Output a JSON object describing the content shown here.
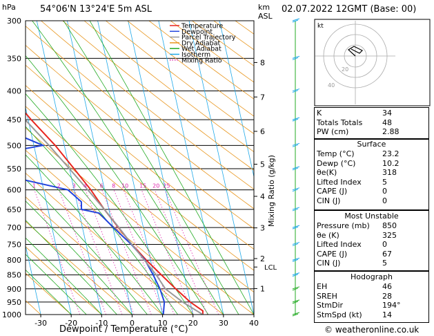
{
  "header": {
    "hpa_label": "hPa",
    "location": "54°06'N  13°24'E  5m  ASL",
    "km_label": "km",
    "asl_label": "ASL",
    "datetime": "02.07.2022  12GMT  (Base: 00)"
  },
  "legend": [
    {
      "label": "Temperature",
      "color": "#e8251e"
    },
    {
      "label": "Dewpoint",
      "color": "#2244dd"
    },
    {
      "label": "Parcel Trajectory",
      "color": "#999999"
    },
    {
      "label": "Dry Adiabat",
      "color": "#e8961e"
    },
    {
      "label": "Wet Adiabat",
      "color": "#22aa22"
    },
    {
      "label": "Isotherm",
      "color": "#1ea8e8"
    },
    {
      "label": "Mixing Ratio",
      "color": "#dd22aa"
    }
  ],
  "chart_data": {
    "type": "line",
    "xlabel": "Dewpoint / Temperature (°C)",
    "ylabel_right": "Mixing Ratio (g/kg)",
    "x_ticks": [
      -30,
      -20,
      -10,
      0,
      10,
      20,
      30,
      40
    ],
    "x_range": [
      -35,
      40
    ],
    "pressure_levels": [
      300,
      350,
      400,
      450,
      500,
      550,
      600,
      650,
      700,
      750,
      800,
      850,
      900,
      950,
      1000
    ],
    "km_ticks": [
      {
        "label": "8",
        "p": 356
      },
      {
        "label": "7",
        "p": 410
      },
      {
        "label": "6",
        "p": 472
      },
      {
        "label": "5",
        "p": 540
      },
      {
        "label": "4",
        "p": 616
      },
      {
        "label": "3",
        "p": 701
      },
      {
        "label": "2",
        "p": 795
      },
      {
        "label": "1",
        "p": 899
      }
    ],
    "lcl": {
      "label": "LCL",
      "p": 823
    },
    "mixing_ratio_labels": [
      "1",
      "2",
      "3",
      "4",
      "6",
      "8",
      "10",
      "15",
      "20",
      "25"
    ],
    "mixing_ratio_values": [
      1,
      2,
      3,
      4,
      6,
      8,
      10,
      15,
      20,
      25
    ],
    "series": [
      {
        "name": "Temperature",
        "color": "#e8251e",
        "points": [
          [
            1000,
            23.2
          ],
          [
            985,
            23.5
          ],
          [
            950,
            20
          ],
          [
            900,
            16.2
          ],
          [
            850,
            12.5
          ],
          [
            800,
            8.6
          ],
          [
            750,
            5
          ],
          [
            700,
            1.8
          ],
          [
            650,
            -1.5
          ],
          [
            600,
            -4.5
          ],
          [
            550,
            -8.5
          ],
          [
            500,
            -13
          ],
          [
            450,
            -19
          ],
          [
            400,
            -25
          ],
          [
            350,
            -31
          ],
          [
            300,
            -38
          ]
        ]
      },
      {
        "name": "Dewpoint",
        "color": "#2244dd",
        "points": [
          [
            1000,
            10.2
          ],
          [
            990,
            10.5
          ],
          [
            950,
            11.5
          ],
          [
            900,
            11
          ],
          [
            850,
            9.8
          ],
          [
            800,
            8.2
          ],
          [
            750,
            4.8
          ],
          [
            700,
            0.2
          ],
          [
            660,
            -3.5
          ],
          [
            650,
            -9
          ],
          [
            630,
            -8.5
          ],
          [
            600,
            -12
          ],
          [
            560,
            -35
          ],
          [
            520,
            -35
          ],
          [
            500,
            -17
          ],
          [
            480,
            -24
          ],
          [
            460,
            -22
          ],
          [
            440,
            -24
          ],
          [
            420,
            -24
          ],
          [
            400,
            -28
          ],
          [
            350,
            -48
          ],
          [
            300,
            -45
          ]
        ]
      },
      {
        "name": "Parcel Trajectory",
        "color": "#999999",
        "points": [
          [
            1000,
            23.2
          ],
          [
            950,
            17.5
          ],
          [
            900,
            12.8
          ],
          [
            850,
            10.8
          ],
          [
            800,
            8
          ],
          [
            750,
            5
          ],
          [
            700,
            2
          ],
          [
            650,
            -1.5
          ],
          [
            600,
            -5.5
          ],
          [
            550,
            -10
          ],
          [
            500,
            -15
          ],
          [
            450,
            -21
          ],
          [
            400,
            -27.5
          ],
          [
            350,
            -35
          ],
          [
            300,
            -44
          ]
        ]
      }
    ]
  },
  "hodograph": {
    "label_kt": "kt",
    "ring_labels": [
      "20",
      "40"
    ]
  },
  "indices": [
    {
      "label": "K",
      "value": "34"
    },
    {
      "label": "Totals Totals",
      "value": "48"
    },
    {
      "label": "PW (cm)",
      "value": "2.88"
    }
  ],
  "surface": {
    "title": "Surface",
    "rows": [
      {
        "label": "Temp (°C)",
        "value": "23.2"
      },
      {
        "label": "Dewp (°C)",
        "value": "10.2"
      },
      {
        "label": "θe(K)",
        "value": "318"
      },
      {
        "label": "Lifted Index",
        "value": "5"
      },
      {
        "label": "CAPE (J)",
        "value": "0"
      },
      {
        "label": "CIN (J)",
        "value": "0"
      }
    ]
  },
  "most_unstable": {
    "title": "Most Unstable",
    "rows": [
      {
        "label": "Pressure (mb)",
        "value": "850"
      },
      {
        "label": "θe (K)",
        "value": "325"
      },
      {
        "label": "Lifted Index",
        "value": "0"
      },
      {
        "label": "CAPE (J)",
        "value": "67"
      },
      {
        "label": "CIN (J)",
        "value": "5"
      }
    ]
  },
  "hodograph_table": {
    "title": "Hodograph",
    "rows": [
      {
        "label": "EH",
        "value": "46"
      },
      {
        "label": "SREH",
        "value": "28"
      },
      {
        "label": "StmDir",
        "value": "194°"
      },
      {
        "label": "StmSpd (kt)",
        "value": "14"
      }
    ]
  },
  "credit": "© weatheronline.co.uk"
}
